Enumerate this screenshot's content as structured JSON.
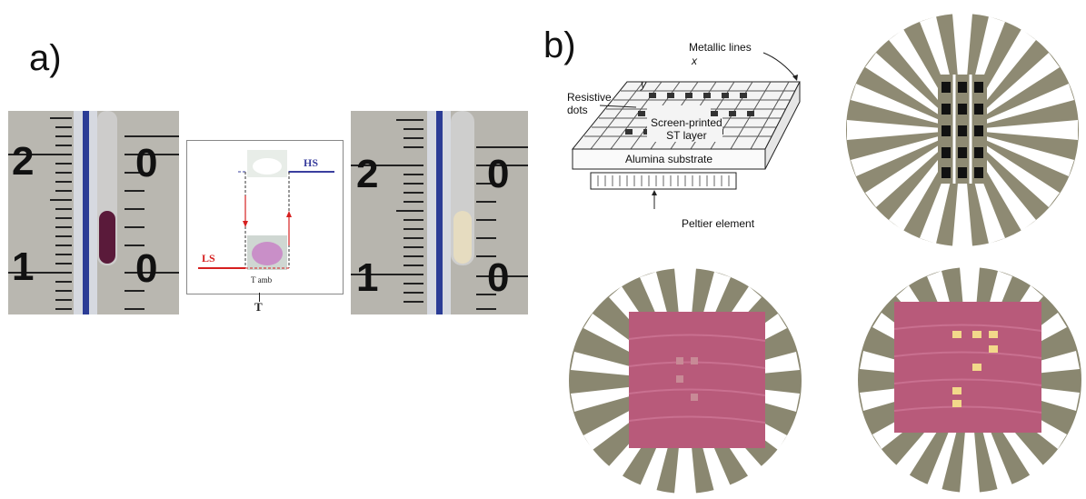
{
  "panel_a": {
    "label": "a)",
    "left_photo": {
      "scale_top": "2",
      "scale_bottom": "1",
      "scale_top_right": "0",
      "scale_bottom_right": "0"
    },
    "right_photo": {
      "scale_top": "2",
      "scale_bottom": "1",
      "scale_top_right": "0",
      "scale_bottom_right": "0"
    },
    "transition_diagram": {
      "hs_label": "HS",
      "ls_label": "LS",
      "temp_label": "T amb",
      "axis_label": "T"
    }
  },
  "panel_b": {
    "label": "b)",
    "schematic": {
      "metallic_lines": "Metallic lines",
      "x_axis": "x",
      "y_axis": "y",
      "resistive_dots": "Resistive\ndots",
      "resistive": "Resistive",
      "dots": "dots",
      "st_layer_1": "Screen-printed",
      "st_layer_2": "ST layer",
      "substrate": "Alumina substrate",
      "peltier": "Peltier element"
    }
  },
  "colors": {
    "hs": "#3a3f9e",
    "ls": "#d62020",
    "pink_layer": "#b85a7a",
    "metal": "#8a8770"
  }
}
